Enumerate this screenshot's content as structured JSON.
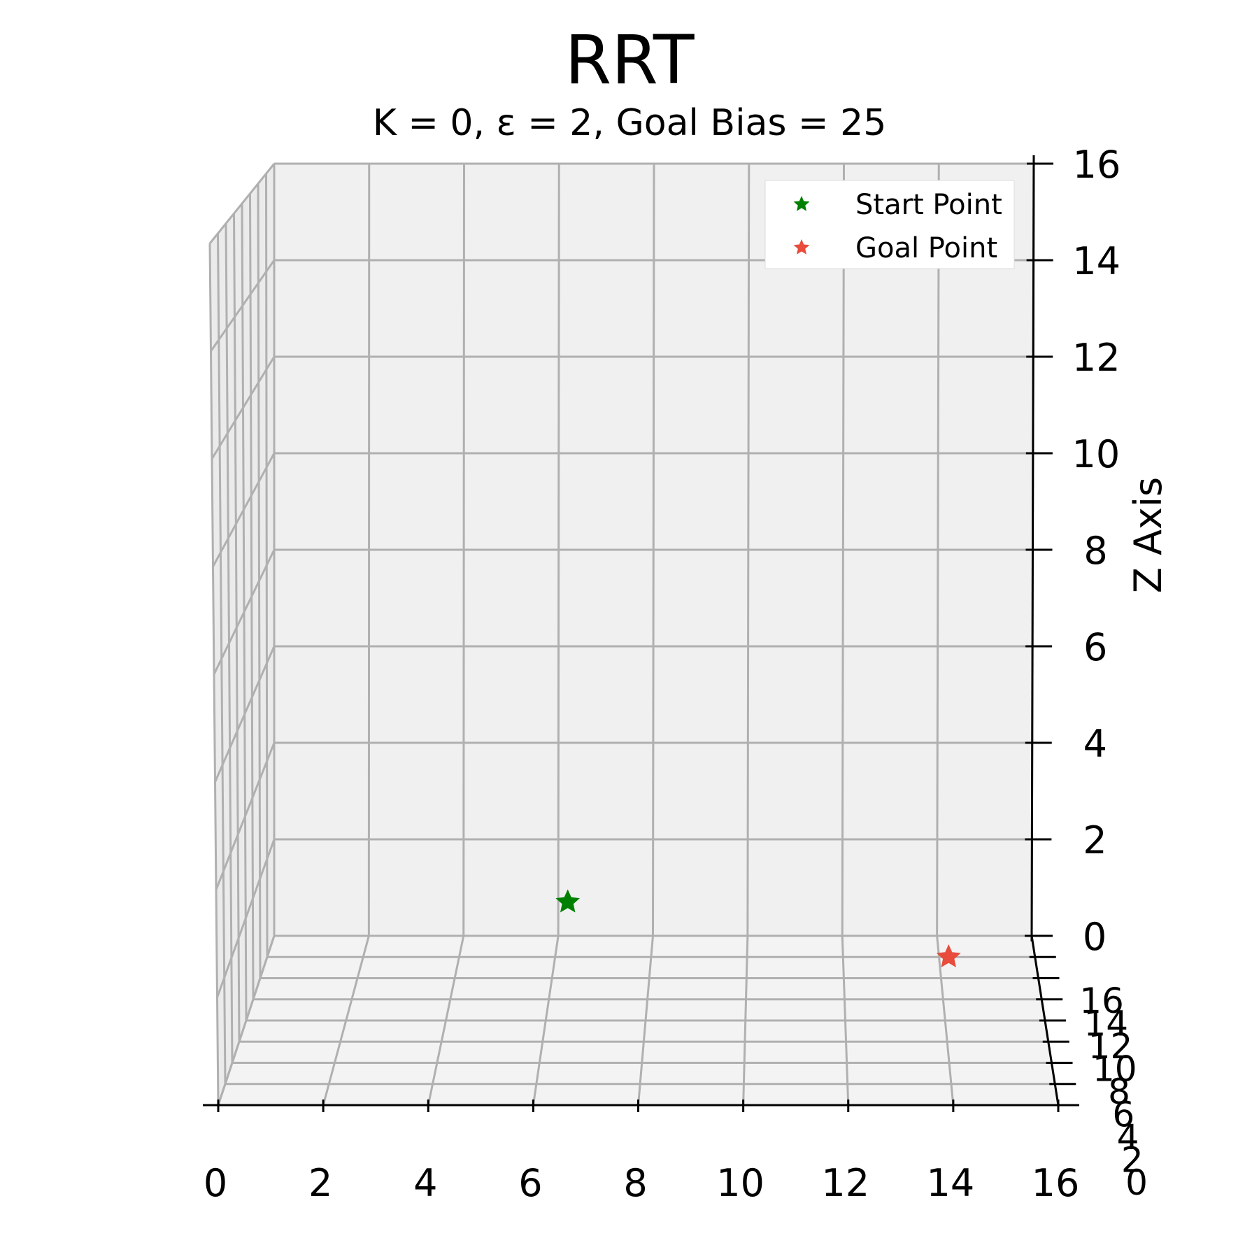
{
  "chart_data": {
    "type": "scatter3d",
    "title": "RRT",
    "subtitle": "K = 0, ε = 2, Goal Bias = 25",
    "xlabel": "",
    "ylabel": "",
    "zlabel": "Z Axis",
    "xlim": [
      0,
      16
    ],
    "ylim": [
      0,
      16
    ],
    "zlim": [
      0,
      16
    ],
    "x_ticks": [
      "0",
      "2",
      "4",
      "6",
      "8",
      "10",
      "12",
      "14",
      "16"
    ],
    "y_ticks": [
      "0",
      "2",
      "4",
      "6",
      "8",
      "10",
      "12",
      "14",
      "16"
    ],
    "z_ticks": [
      "0",
      "2",
      "4",
      "6",
      "8",
      "10",
      "12",
      "14",
      "16"
    ],
    "grid": true,
    "legend_position": "top-right",
    "series": [
      {
        "name": "Start Point",
        "marker": "star",
        "color": "#008000",
        "points": [
          {
            "x": 6.2,
            "y": 16,
            "z": 0.7
          }
        ]
      },
      {
        "name": "Goal Point",
        "marker": "star",
        "color": "#e74c3c",
        "points": [
          {
            "x": 14.2,
            "y": 14,
            "z": 0
          }
        ]
      }
    ],
    "colors": {
      "pane": "#f0f0f0",
      "grid": "#b0b0b0",
      "axis": "#000000"
    }
  }
}
